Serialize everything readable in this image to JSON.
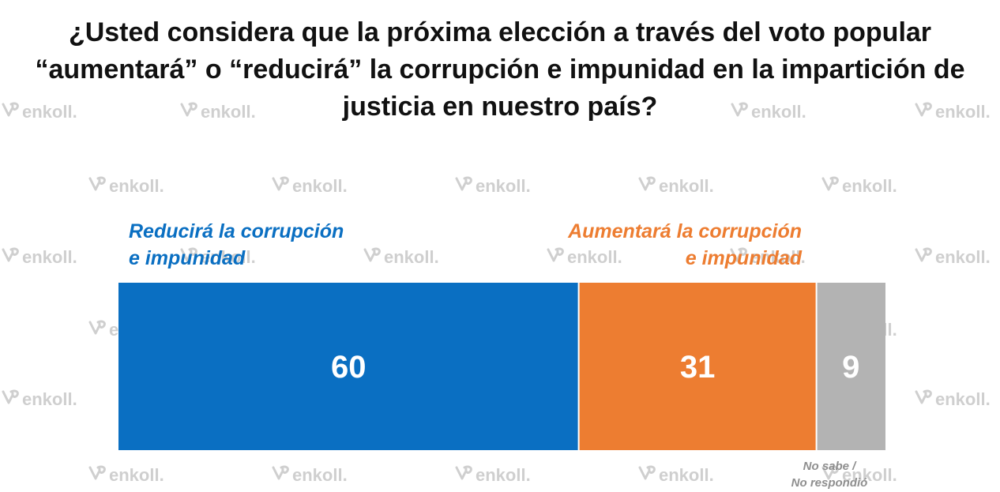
{
  "title": {
    "lines": [
      "¿Usted considera que la próxima elección a través del voto popular",
      "“aumentará” o “reducirá” la corrupción e impunidad en la impartición de",
      "justicia en nuestro país?"
    ]
  },
  "watermark": {
    "text": "enkoll.",
    "icon": "enkoll-logo-icon",
    "color": "#cfcfcf"
  },
  "legend": {
    "left": {
      "lines": [
        "Reducirá la corrupción",
        "e impunidad"
      ],
      "color": "#0a6fc2"
    },
    "right": {
      "lines": [
        "Aumentará la corrupción",
        "e impunidad"
      ],
      "color": "#ed7d31"
    }
  },
  "no_response_label": {
    "lines": [
      "No sabe /",
      "No respondió"
    ]
  },
  "chart_data": {
    "type": "bar",
    "orientation": "horizontal",
    "stacked": true,
    "categories": [
      ""
    ],
    "series": [
      {
        "name": "Reducirá la corrupción e impunidad",
        "values": [
          60
        ],
        "label": "60",
        "color": "#0a6fc2"
      },
      {
        "name": "Aumentará la corrupción e impunidad",
        "values": [
          31
        ],
        "label": "31",
        "color": "#ed7d31"
      },
      {
        "name": "No sabe / No respondió",
        "values": [
          9
        ],
        "label": "9",
        "color": "#b3b3b3"
      }
    ],
    "xlim": [
      0,
      100
    ],
    "grid": false
  }
}
